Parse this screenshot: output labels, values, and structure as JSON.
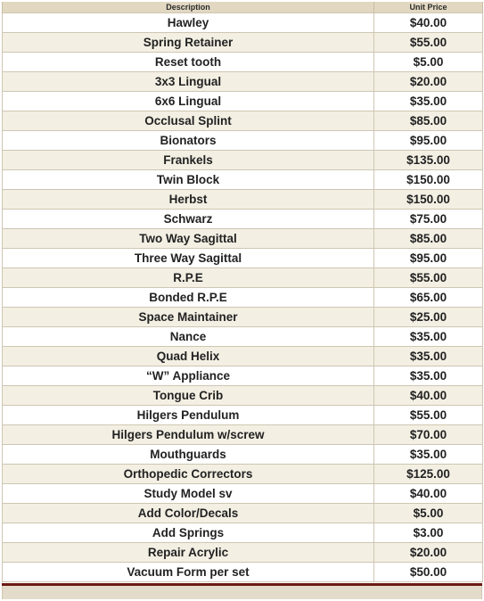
{
  "table": {
    "headers": {
      "description": "Description",
      "unit_price": "Unit Price"
    },
    "rows": [
      {
        "description": "Hawley",
        "price": "$40.00"
      },
      {
        "description": "Spring Retainer",
        "price": "$55.00"
      },
      {
        "description": "Reset tooth",
        "price": "$5.00"
      },
      {
        "description": "3x3 Lingual",
        "price": "$20.00"
      },
      {
        "description": "6x6 Lingual",
        "price": "$35.00"
      },
      {
        "description": "Occlusal Splint",
        "price": "$85.00"
      },
      {
        "description": "Bionators",
        "price": "$95.00"
      },
      {
        "description": "Frankels",
        "price": "$135.00"
      },
      {
        "description": "Twin Block",
        "price": "$150.00"
      },
      {
        "description": "Herbst",
        "price": "$150.00"
      },
      {
        "description": "Schwarz",
        "price": "$75.00"
      },
      {
        "description": "Two Way Sagittal",
        "price": "$85.00"
      },
      {
        "description": "Three Way Sagittal",
        "price": "$95.00"
      },
      {
        "description": "R.P.E",
        "price": "$55.00"
      },
      {
        "description": "Bonded R.P.E",
        "price": "$65.00"
      },
      {
        "description": "Space Maintainer",
        "price": "$25.00"
      },
      {
        "description": "Nance",
        "price": "$35.00"
      },
      {
        "description": "Quad Helix",
        "price": "$35.00"
      },
      {
        "description": "“W” Appliance",
        "price": "$35.00"
      },
      {
        "description": "Tongue Crib",
        "price": "$40.00"
      },
      {
        "description": "Hilgers Pendulum",
        "price": "$55.00"
      },
      {
        "description": "Hilgers Pendulum w/screw",
        "price": "$70.00"
      },
      {
        "description": "Mouthguards",
        "price": "$35.00"
      },
      {
        "description": "Orthopedic Correctors",
        "price": "$125.00"
      },
      {
        "description": "Study Model sv",
        "price": "$40.00"
      },
      {
        "description": "Add Color/Decals",
        "price": "$5.00"
      },
      {
        "description": "Add Springs",
        "price": "$3.00"
      },
      {
        "description": "Repair Acrylic",
        "price": "$20.00"
      },
      {
        "description": "Vacuum Form per set",
        "price": "$50.00"
      }
    ]
  }
}
